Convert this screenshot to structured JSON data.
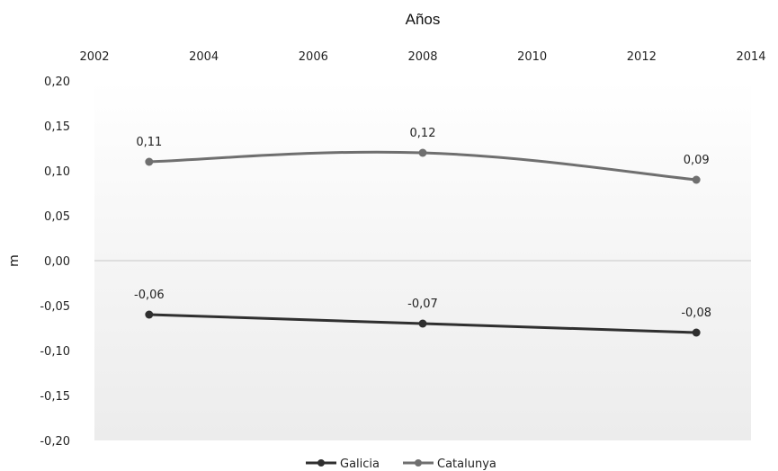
{
  "chart_data": {
    "type": "line",
    "title": "Años",
    "xlabel": "Años",
    "ylabel": "m",
    "xlim": [
      2002,
      2014
    ],
    "ylim": [
      -0.2,
      0.2
    ],
    "x_ticks": [
      "2002",
      "2004",
      "2006",
      "2008",
      "2010",
      "2012",
      "2014"
    ],
    "y_ticks": [
      "0,20",
      "0,15",
      "0,10",
      "0,05",
      "0,00",
      "-0,05",
      "-0,10",
      "-0,15",
      "-0,20"
    ],
    "x_axis_position": "top",
    "grid": false,
    "legend_position": "bottom",
    "series": [
      {
        "name": "Galicia",
        "color": "#2f2f2f",
        "x": [
          2003,
          2008,
          2013
        ],
        "values": [
          -0.06,
          -0.07,
          -0.08
        ],
        "labels": [
          "-0,06",
          "-0,07",
          "-0,08"
        ]
      },
      {
        "name": "Catalunya",
        "color": "#6f6f6f",
        "x": [
          2003,
          2008,
          2013
        ],
        "values": [
          0.11,
          0.12,
          0.09
        ],
        "labels": [
          "0,11",
          "0,12",
          "0,09"
        ]
      }
    ]
  }
}
